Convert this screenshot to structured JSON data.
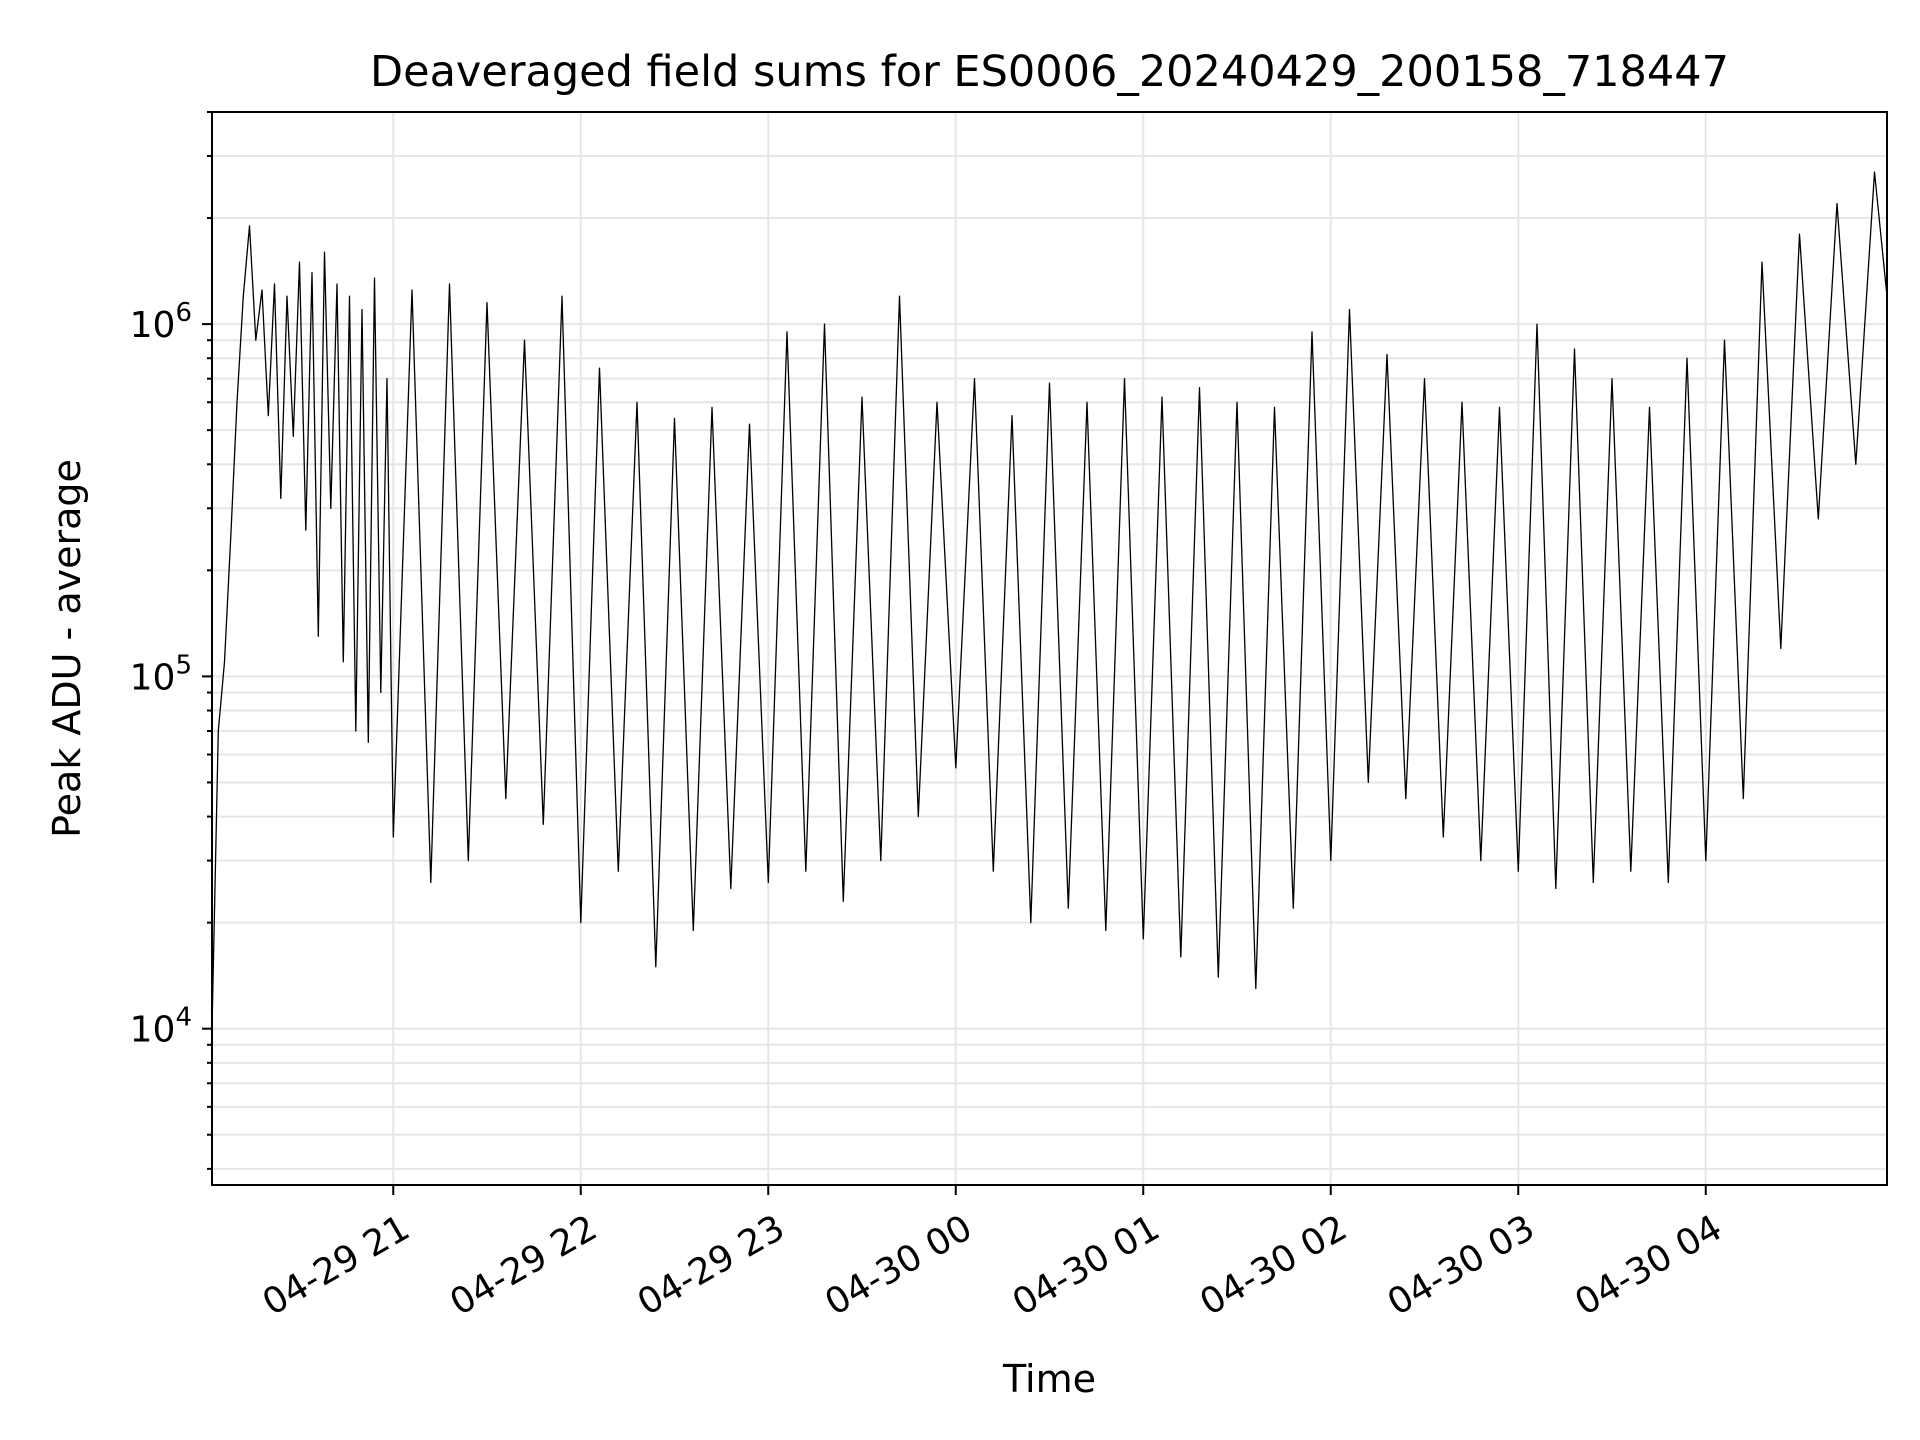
{
  "chart_data": {
    "type": "line",
    "title": "Deaveraged field sums for ES0006_20240429_200158_718447",
    "xlabel": "Time",
    "ylabel": "Peak ADU - average",
    "yscale": "log",
    "xlim": [
      "2024-04-29 20:02",
      "2024-04-30 04:58"
    ],
    "ylim": [
      3600,
      4000000
    ],
    "grid": true,
    "line_color": "#000000",
    "x_ticks": [
      {
        "value": "2024-04-29 21:00",
        "label": "04-29 21"
      },
      {
        "value": "2024-04-29 22:00",
        "label": "04-29 22"
      },
      {
        "value": "2024-04-29 23:00",
        "label": "04-29 23"
      },
      {
        "value": "2024-04-30 00:00",
        "label": "04-30 00"
      },
      {
        "value": "2024-04-30 01:00",
        "label": "04-30 01"
      },
      {
        "value": "2024-04-30 02:00",
        "label": "04-30 02"
      },
      {
        "value": "2024-04-30 03:00",
        "label": "04-30 03"
      },
      {
        "value": "2024-04-30 04:00",
        "label": "04-30 04"
      }
    ],
    "y_ticks": [
      {
        "value": 10000,
        "base": "10",
        "exp": "4"
      },
      {
        "value": 100000,
        "base": "10",
        "exp": "5"
      },
      {
        "value": 1000000,
        "base": "10",
        "exp": "6"
      }
    ],
    "series": [
      {
        "x": [
          "2024-04-29 20:02",
          "2024-04-29 20:04",
          "2024-04-29 20:06",
          "2024-04-29 20:08",
          "2024-04-29 20:10",
          "2024-04-29 20:12",
          "2024-04-29 20:14",
          "2024-04-29 20:16",
          "2024-04-29 20:18",
          "2024-04-29 20:20",
          "2024-04-29 20:22",
          "2024-04-29 20:24",
          "2024-04-29 20:26",
          "2024-04-29 20:28",
          "2024-04-29 20:30",
          "2024-04-29 20:32",
          "2024-04-29 20:34",
          "2024-04-29 20:36",
          "2024-04-29 20:38",
          "2024-04-29 20:40",
          "2024-04-29 20:42",
          "2024-04-29 20:44",
          "2024-04-29 20:46",
          "2024-04-29 20:48",
          "2024-04-29 20:50",
          "2024-04-29 20:52",
          "2024-04-29 20:54",
          "2024-04-29 20:56",
          "2024-04-29 20:58",
          "2024-04-29 21:00",
          "2024-04-29 21:06",
          "2024-04-29 21:12",
          "2024-04-29 21:18",
          "2024-04-29 21:24",
          "2024-04-29 21:30",
          "2024-04-29 21:36",
          "2024-04-29 21:42",
          "2024-04-29 21:48",
          "2024-04-29 21:54",
          "2024-04-29 22:00",
          "2024-04-29 22:06",
          "2024-04-29 22:12",
          "2024-04-29 22:18",
          "2024-04-29 22:24",
          "2024-04-29 22:30",
          "2024-04-29 22:36",
          "2024-04-29 22:42",
          "2024-04-29 22:48",
          "2024-04-29 22:54",
          "2024-04-29 23:00",
          "2024-04-29 23:06",
          "2024-04-29 23:12",
          "2024-04-29 23:18",
          "2024-04-29 23:24",
          "2024-04-29 23:30",
          "2024-04-29 23:36",
          "2024-04-29 23:42",
          "2024-04-29 23:48",
          "2024-04-29 23:54",
          "2024-04-30 00:00",
          "2024-04-30 00:06",
          "2024-04-30 00:12",
          "2024-04-30 00:18",
          "2024-04-30 00:24",
          "2024-04-30 00:30",
          "2024-04-30 00:36",
          "2024-04-30 00:42",
          "2024-04-30 00:48",
          "2024-04-30 00:54",
          "2024-04-30 01:00",
          "2024-04-30 01:06",
          "2024-04-30 01:12",
          "2024-04-30 01:18",
          "2024-04-30 01:24",
          "2024-04-30 01:30",
          "2024-04-30 01:36",
          "2024-04-30 01:42",
          "2024-04-30 01:48",
          "2024-04-30 01:54",
          "2024-04-30 02:00",
          "2024-04-30 02:06",
          "2024-04-30 02:12",
          "2024-04-30 02:18",
          "2024-04-30 02:24",
          "2024-04-30 02:30",
          "2024-04-30 02:36",
          "2024-04-30 02:42",
          "2024-04-30 02:48",
          "2024-04-30 02:54",
          "2024-04-30 03:00",
          "2024-04-30 03:06",
          "2024-04-30 03:12",
          "2024-04-30 03:18",
          "2024-04-30 03:24",
          "2024-04-30 03:30",
          "2024-04-30 03:36",
          "2024-04-30 03:42",
          "2024-04-30 03:48",
          "2024-04-30 03:54",
          "2024-04-30 04:00",
          "2024-04-30 04:06",
          "2024-04-30 04:12",
          "2024-04-30 04:18",
          "2024-04-30 04:24",
          "2024-04-30 04:30",
          "2024-04-30 04:36",
          "2024-04-30 04:42",
          "2024-04-30 04:48",
          "2024-04-30 04:54",
          "2024-04-30 04:58"
        ],
        "values": [
          10000,
          70000,
          110000,
          250000,
          600000,
          1200000,
          1900000,
          900000,
          1250000,
          550000,
          1300000,
          320000,
          1200000,
          480000,
          1500000,
          260000,
          1400000,
          130000,
          1600000,
          300000,
          1300000,
          110000,
          1200000,
          70000,
          1100000,
          65000,
          1350000,
          90000,
          700000,
          35000,
          1250000,
          26000,
          1300000,
          30000,
          1150000,
          45000,
          900000,
          38000,
          1200000,
          20000,
          750000,
          28000,
          600000,
          15000,
          540000,
          19000,
          580000,
          25000,
          520000,
          26000,
          950000,
          28000,
          1000000,
          23000,
          620000,
          30000,
          1200000,
          40000,
          600000,
          55000,
          700000,
          28000,
          550000,
          20000,
          680000,
          22000,
          600000,
          19000,
          700000,
          18000,
          620000,
          16000,
          660000,
          14000,
          600000,
          13000,
          580000,
          22000,
          950000,
          30000,
          1100000,
          50000,
          820000,
          45000,
          700000,
          35000,
          600000,
          30000,
          580000,
          28000,
          1000000,
          25000,
          850000,
          26000,
          700000,
          28000,
          580000,
          26000,
          800000,
          30000,
          900000,
          45000,
          1500000,
          120000,
          1800000,
          280000,
          2200000,
          400000,
          2700000,
          1200000
        ]
      }
    ]
  }
}
